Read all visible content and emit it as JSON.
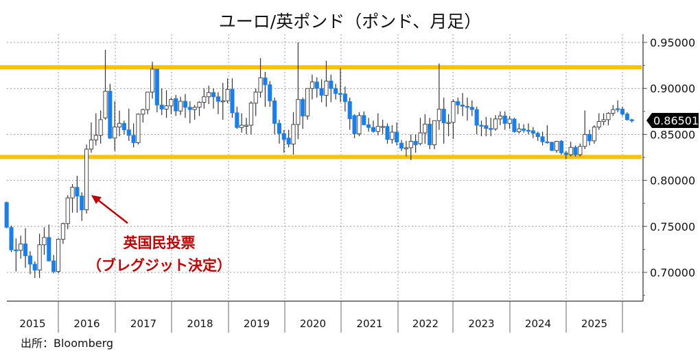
{
  "title": "ユーロ/英ポンド（ポンド、月足）",
  "source": "出所：Bloomberg",
  "chart_data": {
    "type": "candlestick",
    "title": "ユーロ/英ポンド（ポンド、月足）",
    "xlabel": "",
    "ylabel": "",
    "ylim": [
      0.665,
      0.955
    ],
    "yticks": [
      "0.95000",
      "0.90000",
      "0.85000",
      "0.80000",
      "0.75000",
      "0.70000"
    ],
    "ytick_values": [
      0.95,
      0.9,
      0.85,
      0.8,
      0.75,
      0.7
    ],
    "year_labels": [
      "2015",
      "2016",
      "2017",
      "2018",
      "2019",
      "2020",
      "2021",
      "2022",
      "2023",
      "2024",
      "2025"
    ],
    "start_month": "2015-01",
    "frequency": "monthly",
    "grid": true,
    "colors": {
      "down": "#1a7fe8",
      "up": "#ffffff",
      "wick": "#333333",
      "band": "#ffc000",
      "annotation": "#c00000"
    },
    "last_price_label": "0.86501",
    "last_price": 0.86501,
    "band_levels": [
      0.923,
      0.8255
    ],
    "annotation": {
      "line1": "英国民投票",
      "line2": "（ブレグジット決定）",
      "target_month": "2016-06"
    },
    "ohlc": [
      [
        0.776,
        0.777,
        0.748,
        0.749
      ],
      [
        0.749,
        0.751,
        0.722,
        0.7245
      ],
      [
        0.7245,
        0.737,
        0.701,
        0.724
      ],
      [
        0.724,
        0.74,
        0.715,
        0.731
      ],
      [
        0.731,
        0.748,
        0.705,
        0.718
      ],
      [
        0.718,
        0.723,
        0.698,
        0.709
      ],
      [
        0.709,
        0.712,
        0.694,
        0.7025
      ],
      [
        0.7025,
        0.742,
        0.694,
        0.73
      ],
      [
        0.73,
        0.749,
        0.719,
        0.738
      ],
      [
        0.738,
        0.752,
        0.712,
        0.7125
      ],
      [
        0.7125,
        0.719,
        0.699,
        0.701
      ],
      [
        0.701,
        0.737,
        0.699,
        0.736
      ],
      [
        0.736,
        0.754,
        0.731,
        0.753
      ],
      [
        0.753,
        0.784,
        0.747,
        0.781
      ],
      [
        0.781,
        0.796,
        0.765,
        0.7925
      ],
      [
        0.7925,
        0.805,
        0.765,
        0.783
      ],
      [
        0.783,
        0.787,
        0.756,
        0.768
      ],
      [
        0.768,
        0.839,
        0.764,
        0.834
      ],
      [
        0.834,
        0.863,
        0.83,
        0.844
      ],
      [
        0.844,
        0.873,
        0.838,
        0.849
      ],
      [
        0.849,
        0.876,
        0.84,
        0.866
      ],
      [
        0.868,
        0.942,
        0.866,
        0.897
      ],
      [
        0.897,
        0.905,
        0.845,
        0.846
      ],
      [
        0.846,
        0.886,
        0.832,
        0.858
      ],
      [
        0.858,
        0.876,
        0.848,
        0.862
      ],
      [
        0.862,
        0.865,
        0.85,
        0.855
      ],
      [
        0.855,
        0.878,
        0.843,
        0.849
      ],
      [
        0.849,
        0.862,
        0.836,
        0.841
      ],
      [
        0.841,
        0.873,
        0.839,
        0.872
      ],
      [
        0.872,
        0.878,
        0.863,
        0.877
      ],
      [
        0.877,
        0.896,
        0.872,
        0.896
      ],
      [
        0.896,
        0.929,
        0.889,
        0.921
      ],
      [
        0.921,
        0.921,
        0.874,
        0.882
      ],
      [
        0.882,
        0.9,
        0.871,
        0.8775
      ],
      [
        0.8775,
        0.898,
        0.868,
        0.881
      ],
      [
        0.881,
        0.89,
        0.872,
        0.888
      ],
      [
        0.889,
        0.893,
        0.87,
        0.8755
      ],
      [
        0.8755,
        0.891,
        0.871,
        0.886
      ],
      [
        0.886,
        0.894,
        0.868,
        0.8795
      ],
      [
        0.8795,
        0.886,
        0.862,
        0.877
      ],
      [
        0.877,
        0.882,
        0.866,
        0.8795
      ],
      [
        0.8795,
        0.886,
        0.87,
        0.885
      ],
      [
        0.885,
        0.9,
        0.878,
        0.891
      ],
      [
        0.891,
        0.903,
        0.883,
        0.8955
      ],
      [
        0.8955,
        0.9,
        0.878,
        0.891
      ],
      [
        0.891,
        0.896,
        0.872,
        0.886
      ],
      [
        0.886,
        0.906,
        0.866,
        0.8865
      ],
      [
        0.8865,
        0.911,
        0.884,
        0.899
      ],
      [
        0.899,
        0.911,
        0.868,
        0.8735
      ],
      [
        0.8735,
        0.88,
        0.856,
        0.8575
      ],
      [
        0.8575,
        0.873,
        0.852,
        0.86
      ],
      [
        0.86,
        0.868,
        0.85,
        0.86
      ],
      [
        0.86,
        0.886,
        0.85,
        0.884
      ],
      [
        0.884,
        0.9,
        0.87,
        0.896
      ],
      [
        0.896,
        0.933,
        0.89,
        0.9115
      ],
      [
        0.9115,
        0.918,
        0.88,
        0.904
      ],
      [
        0.904,
        0.908,
        0.88,
        0.8865
      ],
      [
        0.8865,
        0.89,
        0.85,
        0.862
      ],
      [
        0.862,
        0.866,
        0.84,
        0.851
      ],
      [
        0.851,
        0.855,
        0.83,
        0.8445
      ],
      [
        0.846,
        0.855,
        0.836,
        0.8395
      ],
      [
        0.8395,
        0.874,
        0.828,
        0.8608
      ],
      [
        0.8608,
        0.95,
        0.845,
        0.888
      ],
      [
        0.888,
        0.89,
        0.856,
        0.87
      ],
      [
        0.87,
        0.9,
        0.866,
        0.9
      ],
      [
        0.9,
        0.915,
        0.888,
        0.907
      ],
      [
        0.907,
        0.912,
        0.89,
        0.9
      ],
      [
        0.9,
        0.91,
        0.885,
        0.8925
      ],
      [
        0.8925,
        0.93,
        0.88,
        0.908
      ],
      [
        0.908,
        0.915,
        0.885,
        0.9
      ],
      [
        0.9,
        0.905,
        0.888,
        0.8945
      ],
      [
        0.8945,
        0.922,
        0.885,
        0.894
      ],
      [
        0.894,
        0.902,
        0.875,
        0.8857
      ],
      [
        0.8857,
        0.89,
        0.855,
        0.867
      ],
      [
        0.8705,
        0.872,
        0.846,
        0.8507
      ],
      [
        0.8507,
        0.874,
        0.848,
        0.8705
      ],
      [
        0.8705,
        0.875,
        0.86,
        0.8605
      ],
      [
        0.8605,
        0.868,
        0.853,
        0.8575
      ],
      [
        0.8575,
        0.865,
        0.852,
        0.8532
      ],
      [
        0.8532,
        0.873,
        0.849,
        0.8587
      ],
      [
        0.8587,
        0.866,
        0.85,
        0.8587
      ],
      [
        0.8587,
        0.862,
        0.84,
        0.8445
      ],
      [
        0.8445,
        0.86,
        0.84,
        0.8525
      ],
      [
        0.8525,
        0.863,
        0.838,
        0.8417
      ],
      [
        0.8405,
        0.844,
        0.832,
        0.835
      ],
      [
        0.835,
        0.843,
        0.826,
        0.8355
      ],
      [
        0.8355,
        0.85,
        0.822,
        0.8425
      ],
      [
        0.8425,
        0.85,
        0.83,
        0.8387
      ],
      [
        0.84,
        0.868,
        0.838,
        0.8517
      ],
      [
        0.8517,
        0.872,
        0.84,
        0.8612
      ],
      [
        0.8612,
        0.868,
        0.834,
        0.8387
      ],
      [
        0.8387,
        0.865,
        0.834,
        0.865
      ],
      [
        0.865,
        0.927,
        0.855,
        0.8775
      ],
      [
        0.8775,
        0.89,
        0.84,
        0.8625
      ],
      [
        0.8625,
        0.872,
        0.848,
        0.863
      ],
      [
        0.863,
        0.888,
        0.845,
        0.8857
      ],
      [
        0.8857,
        0.89,
        0.872,
        0.882
      ],
      [
        0.882,
        0.895,
        0.87,
        0.8805
      ],
      [
        0.8805,
        0.89,
        0.865,
        0.8795
      ],
      [
        0.8795,
        0.887,
        0.87,
        0.877
      ],
      [
        0.877,
        0.88,
        0.85,
        0.86
      ],
      [
        0.86,
        0.865,
        0.848,
        0.8595
      ],
      [
        0.8595,
        0.869,
        0.848,
        0.8565
      ],
      [
        0.8565,
        0.868,
        0.848,
        0.856
      ],
      [
        0.856,
        0.871,
        0.854,
        0.8668
      ],
      [
        0.8668,
        0.875,
        0.86,
        0.87
      ],
      [
        0.87,
        0.875,
        0.855,
        0.862
      ],
      [
        0.862,
        0.87,
        0.856,
        0.8667
      ],
      [
        0.8667,
        0.868,
        0.852,
        0.853
      ],
      [
        0.853,
        0.862,
        0.851,
        0.856
      ],
      [
        0.856,
        0.861,
        0.852,
        0.8545
      ],
      [
        0.8545,
        0.862,
        0.85,
        0.854
      ],
      [
        0.854,
        0.858,
        0.846,
        0.8512
      ],
      [
        0.8512,
        0.853,
        0.843,
        0.8475
      ],
      [
        0.8475,
        0.853,
        0.838,
        0.842
      ],
      [
        0.842,
        0.86,
        0.84,
        0.8415
      ],
      [
        0.8415,
        0.842,
        0.832,
        0.8325
      ],
      [
        0.8325,
        0.843,
        0.83,
        0.8425
      ],
      [
        0.8425,
        0.844,
        0.828,
        0.83
      ],
      [
        0.83,
        0.832,
        0.823,
        0.828
      ],
      [
        0.828,
        0.842,
        0.826,
        0.836
      ],
      [
        0.836,
        0.838,
        0.826,
        0.828
      ],
      [
        0.828,
        0.84,
        0.826,
        0.837
      ],
      [
        0.837,
        0.876,
        0.834,
        0.85
      ],
      [
        0.85,
        0.855,
        0.838,
        0.843
      ],
      [
        0.843,
        0.86,
        0.84,
        0.858
      ],
      [
        0.858,
        0.873,
        0.855,
        0.864
      ],
      [
        0.864,
        0.873,
        0.86,
        0.866
      ],
      [
        0.866,
        0.874,
        0.86,
        0.873
      ],
      [
        0.873,
        0.882,
        0.87,
        0.877
      ],
      [
        0.878,
        0.887,
        0.874,
        0.8775
      ],
      [
        0.8775,
        0.88,
        0.87,
        0.8722
      ],
      [
        0.8722,
        0.874,
        0.865,
        0.866
      ],
      [
        0.866,
        0.867,
        0.863,
        0.865
      ]
    ]
  }
}
